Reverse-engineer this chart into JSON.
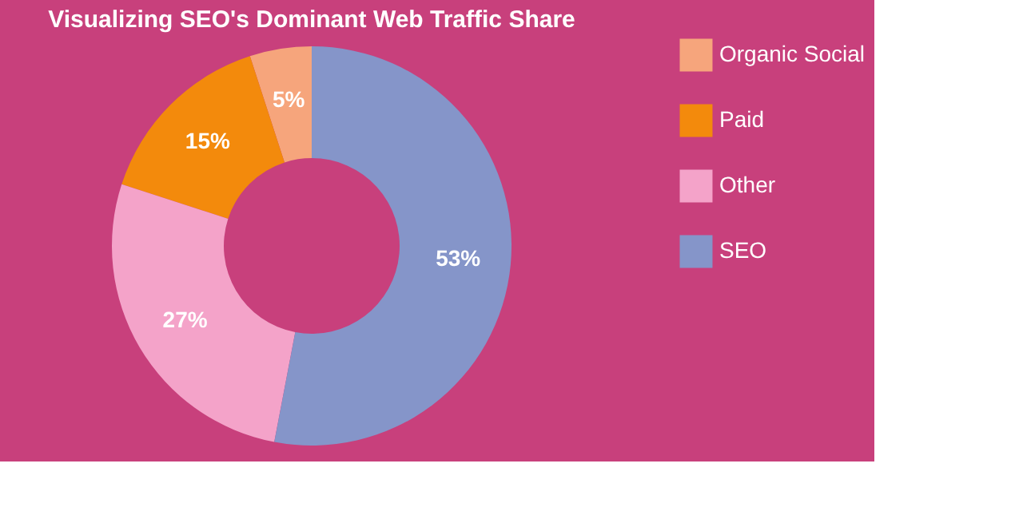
{
  "chart_data": {
    "type": "donut",
    "title": "Visualizing SEO's Dominant Web Traffic Share",
    "categories": [
      "Organic Social",
      "Paid",
      "Other",
      "SEO"
    ],
    "values": [
      5,
      15,
      27,
      53
    ],
    "colors": [
      "#f6a57c",
      "#f38a0c",
      "#f4a3c9",
      "#8595c9"
    ],
    "value_labels": [
      "5%",
      "15%",
      "27%",
      "53%"
    ],
    "legend": "right"
  }
}
